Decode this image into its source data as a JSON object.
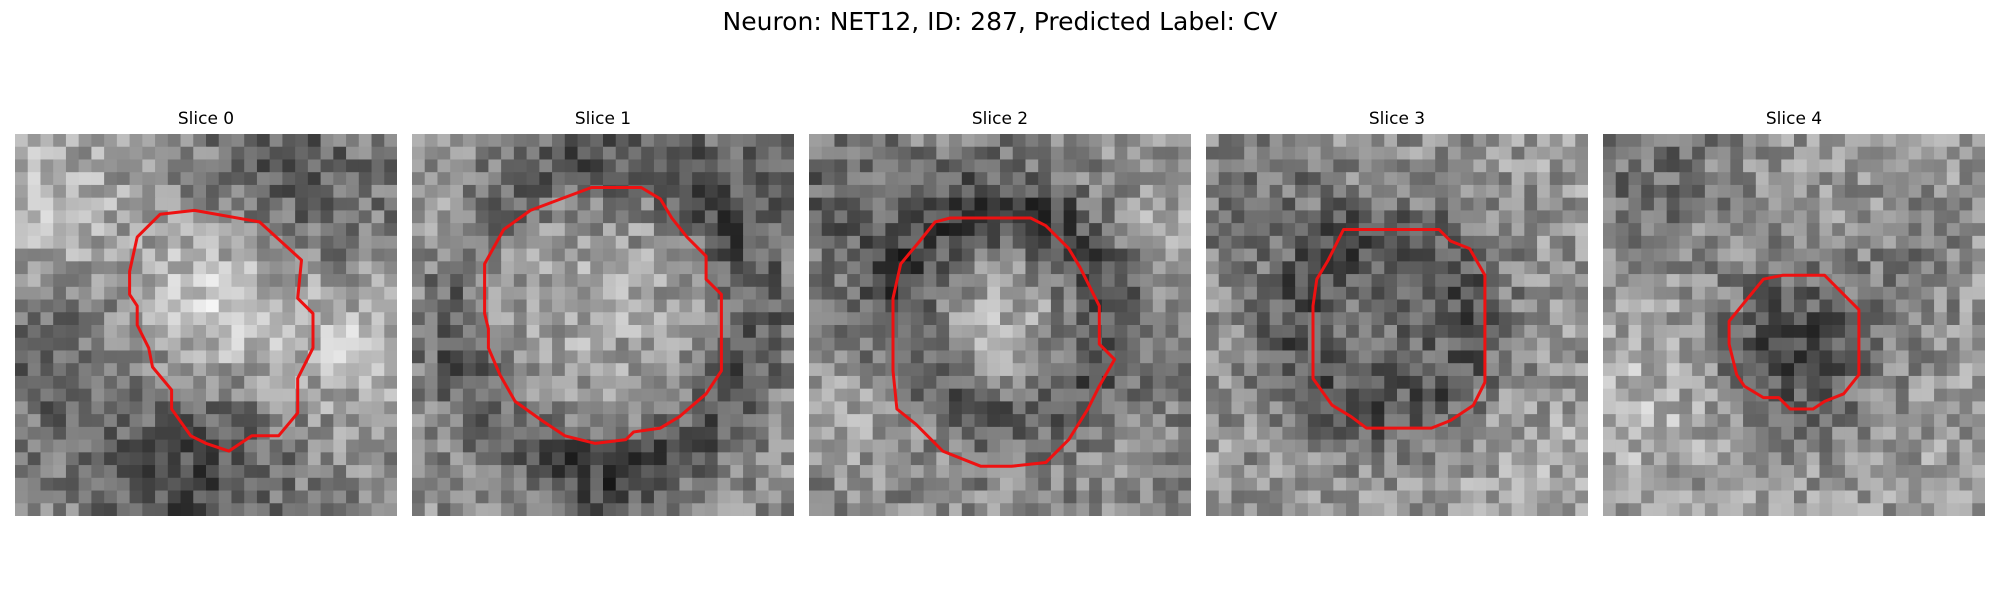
{
  "figure": {
    "title": "Neuron: NET12, ID: 287, Predicted Label: CV"
  },
  "colors": {
    "contour": "#ee1111",
    "background": "#ffffff"
  },
  "slices": [
    {
      "label": "Slice 0"
    },
    {
      "label": "Slice 1"
    },
    {
      "label": "Slice 2"
    },
    {
      "label": "Slice 3"
    },
    {
      "label": "Slice 4"
    }
  ]
}
